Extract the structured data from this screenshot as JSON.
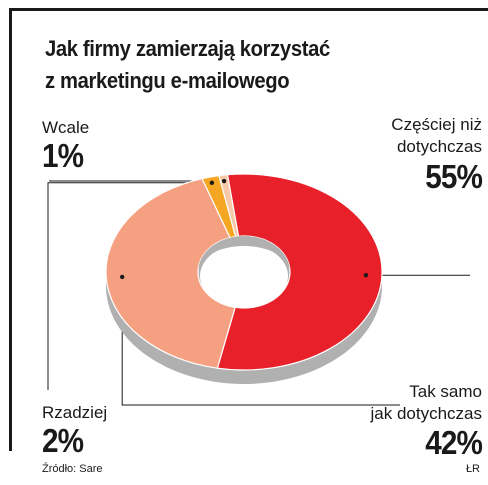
{
  "title_line1": "Jak firmy zamierzają korzystać",
  "title_line2": "z marketingu e-mailowego",
  "source": "Źródło: Sare",
  "credit": "ŁR",
  "colors": {
    "frame": "#1a1a1a",
    "czesciej": "#e8202a",
    "tak_samo": "#f4a081",
    "rzadziej": "#f5a623",
    "wcale": "#f7c9a8",
    "shadow": "#b0b0b0"
  },
  "chart_data": {
    "type": "pie",
    "donut": true,
    "title": "Jak firmy zamierzają korzystać z marketingu e-mailowego",
    "slices": [
      {
        "label_lines": [
          "Częściej niż",
          "dotychczas"
        ],
        "value": 55,
        "value_label": "55%"
      },
      {
        "label_lines": [
          "Tak samo",
          "jak dotychczas"
        ],
        "value": 42,
        "value_label": "42%"
      },
      {
        "label_lines": [
          "Rzadziej"
        ],
        "value": 2,
        "value_label": "2%"
      },
      {
        "label_lines": [
          "Wcale"
        ],
        "value": 1,
        "value_label": "1%"
      }
    ]
  }
}
